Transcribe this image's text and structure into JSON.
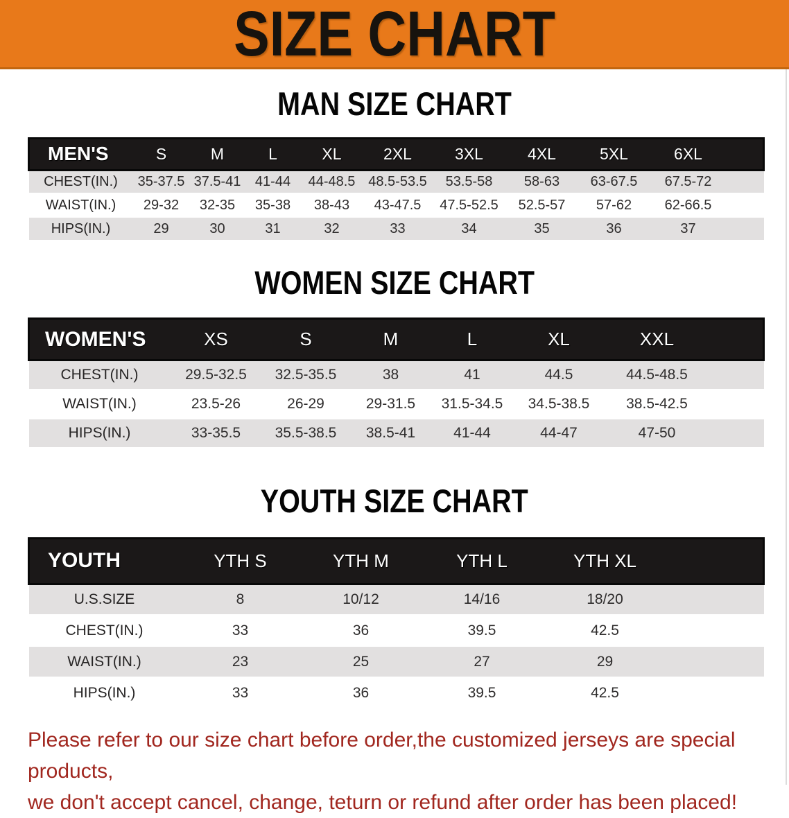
{
  "banner": {
    "title": "SIZE CHART"
  },
  "men": {
    "heading": "MAN SIZE CHART",
    "corner_label": "MEN'S",
    "columns": [
      "S",
      "M",
      "L",
      "XL",
      "2XL",
      "3XL",
      "4XL",
      "5XL",
      "6XL"
    ],
    "rows": [
      {
        "label": "CHEST(IN.)",
        "values": [
          "35-37.5",
          "37.5-41",
          "41-44",
          "44-48.5",
          "48.5-53.5",
          "53.5-58",
          "58-63",
          "63-67.5",
          "67.5-72"
        ]
      },
      {
        "label": "WAIST(IN.)",
        "values": [
          "29-32",
          "32-35",
          "35-38",
          "38-43",
          "43-47.5",
          "47.5-52.5",
          "52.5-57",
          "57-62",
          "62-66.5"
        ]
      },
      {
        "label": "HIPS(IN.)",
        "values": [
          "29",
          "30",
          "31",
          "32",
          "33",
          "34",
          "35",
          "36",
          "37"
        ]
      }
    ]
  },
  "women": {
    "heading": "WOMEN SIZE CHART",
    "corner_label": "WOMEN'S",
    "columns": [
      "XS",
      "S",
      "M",
      "L",
      "XL",
      "XXL"
    ],
    "rows": [
      {
        "label": "CHEST(IN.)",
        "values": [
          "29.5-32.5",
          "32.5-35.5",
          "38",
          "41",
          "44.5",
          "44.5-48.5"
        ]
      },
      {
        "label": "WAIST(IN.)",
        "values": [
          "23.5-26",
          "26-29",
          "29-31.5",
          "31.5-34.5",
          "34.5-38.5",
          "38.5-42.5"
        ]
      },
      {
        "label": "HIPS(IN.)",
        "values": [
          "33-35.5",
          "35.5-38.5",
          "38.5-41",
          "41-44",
          "44-47",
          "47-50"
        ]
      }
    ]
  },
  "youth": {
    "heading": "YOUTH SIZE CHART",
    "corner_label": "YOUTH",
    "columns": [
      "YTH S",
      "YTH M",
      "YTH L",
      "YTH XL"
    ],
    "rows": [
      {
        "label": "U.S.SIZE",
        "values": [
          "8",
          "10/12",
          "14/16",
          "18/20"
        ]
      },
      {
        "label": "CHEST(IN.)",
        "values": [
          "33",
          "36",
          "39.5",
          "42.5"
        ]
      },
      {
        "label": "WAIST(IN.)",
        "values": [
          "23",
          "25",
          "27",
          "29"
        ]
      },
      {
        "label": "HIPS(IN.)",
        "values": [
          "33",
          "36",
          "39.5",
          "42.5"
        ]
      }
    ]
  },
  "disclaimer": {
    "line1": "Please refer to our size chart before order,the customized jerseys are special products,",
    "line2": "we don't accept cancel, change, teturn or refund after order has been placed!"
  },
  "colors": {
    "banner_orange": "#E8791A",
    "header_black": "#1B1818",
    "row_gray": "#E2E0E0",
    "disclaimer_red": "#A1271F"
  }
}
